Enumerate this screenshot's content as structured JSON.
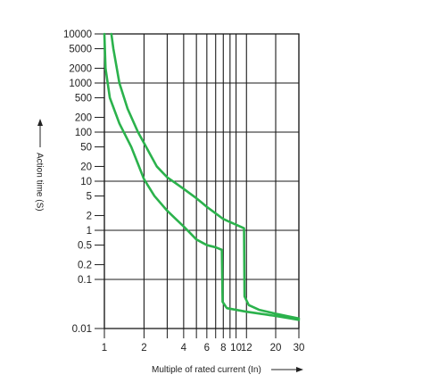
{
  "chart_data": {
    "type": "line",
    "title": "",
    "xlabel": "Multiple of rated current (In)",
    "ylabel": "Action time (S)",
    "x_scale": "log",
    "y_scale": "log",
    "xlim": [
      1,
      30
    ],
    "ylim": [
      0.01,
      10000
    ],
    "grid": true,
    "legend": "none",
    "x_ticks": [
      1,
      2,
      3,
      4,
      5,
      6,
      7,
      8,
      9,
      10,
      12,
      20,
      30
    ],
    "x_tick_labels": [
      "1",
      "2",
      "",
      "4",
      "",
      "6",
      "",
      "8",
      "",
      "10",
      "12",
      "20",
      "30"
    ],
    "x_grid": [
      1,
      2,
      3,
      4,
      5,
      6,
      7,
      8,
      9,
      10,
      12,
      20,
      30
    ],
    "y_ticks": [
      10000,
      5000,
      2000,
      1000,
      500,
      200,
      100,
      50,
      20,
      10,
      5,
      2,
      1,
      0.5,
      0.2,
      0.1,
      0.01
    ],
    "y_tick_labels": [
      "10000",
      "5000",
      "2000",
      "1000",
      "500",
      "200",
      "100",
      "50",
      "20",
      "10",
      "5",
      "2",
      "1",
      "0.5",
      "0.2",
      "0.1",
      "0.01"
    ],
    "y_grid": [
      10000,
      1000,
      100,
      10,
      1,
      0.1,
      0.01
    ],
    "line_color": "#2bb24c",
    "series": [
      {
        "points": [
          [
            1.0,
            10000
          ],
          [
            1.02,
            2000
          ],
          [
            1.1,
            500
          ],
          [
            1.3,
            150
          ],
          [
            1.6,
            50
          ],
          [
            2.0,
            11
          ],
          [
            2.4,
            5
          ],
          [
            3.0,
            2.5
          ],
          [
            4.0,
            1.2
          ],
          [
            5.0,
            0.65
          ],
          [
            6.0,
            0.5
          ],
          [
            7.0,
            0.45
          ],
          [
            7.8,
            0.4
          ],
          [
            7.9,
            0.035
          ],
          [
            8.5,
            0.026
          ],
          [
            12,
            0.022
          ],
          [
            20,
            0.018
          ],
          [
            30,
            0.015
          ]
        ]
      },
      {
        "points": [
          [
            1.13,
            10000
          ],
          [
            1.17,
            5000
          ],
          [
            1.3,
            1000
          ],
          [
            1.5,
            300
          ],
          [
            1.8,
            100
          ],
          [
            2.0,
            60
          ],
          [
            2.5,
            20
          ],
          [
            3.0,
            12
          ],
          [
            4.0,
            7
          ],
          [
            5.0,
            4.5
          ],
          [
            6.0,
            3
          ],
          [
            8.0,
            1.7
          ],
          [
            10.0,
            1.3
          ],
          [
            11.5,
            1.1
          ],
          [
            11.6,
            0.045
          ],
          [
            12.5,
            0.03
          ],
          [
            15,
            0.024
          ],
          [
            20,
            0.02
          ],
          [
            30,
            0.016
          ]
        ]
      }
    ]
  }
}
